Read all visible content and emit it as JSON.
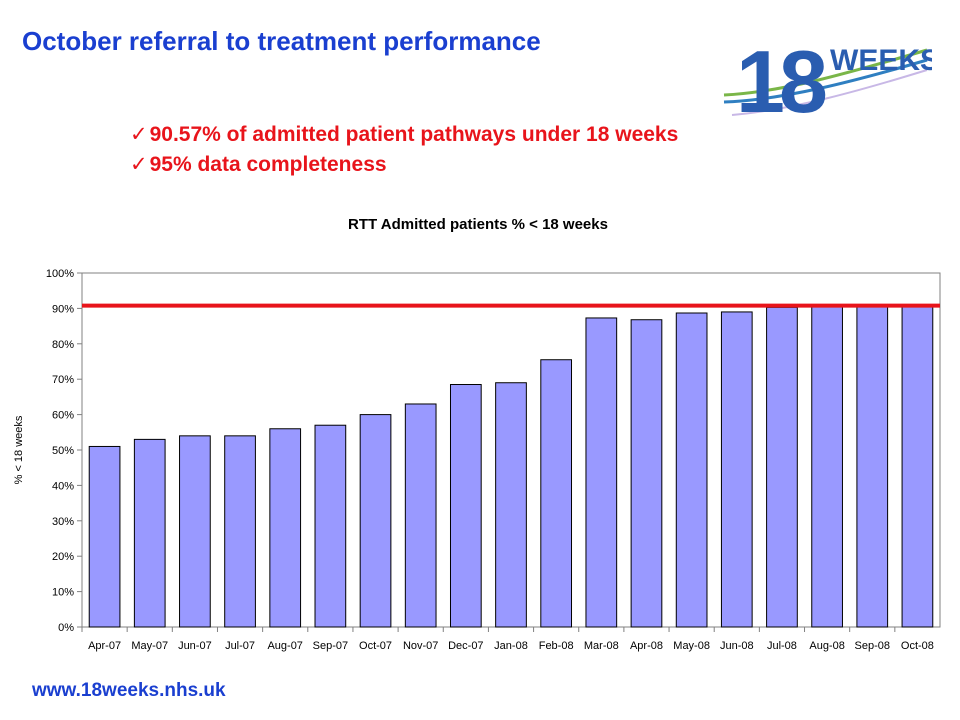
{
  "slide": {
    "title": "October referral to treatment performance",
    "bullets": [
      "90.57% of admitted patient pathways under 18 weeks",
      "95% data completeness"
    ],
    "footer": "www.18weeks.nhs.uk",
    "logo_text": "18 WEEKS"
  },
  "colors": {
    "title": "#1a3fd0",
    "bullet": "#e8141b",
    "bar_fill": "#9999ff",
    "target_line": "#e8141b"
  },
  "chart_data": {
    "type": "bar",
    "title": "RTT Admitted patients % < 18 weeks",
    "xlabel": "",
    "ylabel": "% < 18 weeks",
    "ylim": [
      0,
      100
    ],
    "yticks": [
      "0%",
      "10%",
      "20%",
      "30%",
      "40%",
      "50%",
      "60%",
      "70%",
      "80%",
      "90%",
      "100%"
    ],
    "categories": [
      "Apr-07",
      "May-07",
      "Jun-07",
      "Jul-07",
      "Aug-07",
      "Sep-07",
      "Oct-07",
      "Nov-07",
      "Dec-07",
      "Jan-08",
      "Feb-08",
      "Mar-08",
      "Apr-08",
      "May-08",
      "Jun-08",
      "Jul-08",
      "Aug-08",
      "Sep-08",
      "Oct-08"
    ],
    "values": [
      51,
      53,
      54,
      54,
      56,
      57,
      60,
      63,
      68.5,
      69,
      75.5,
      87.3,
      86.8,
      88.7,
      89,
      90.3,
      90.6,
      90.6,
      90.57
    ],
    "target_line": 90.8,
    "grid": false
  }
}
